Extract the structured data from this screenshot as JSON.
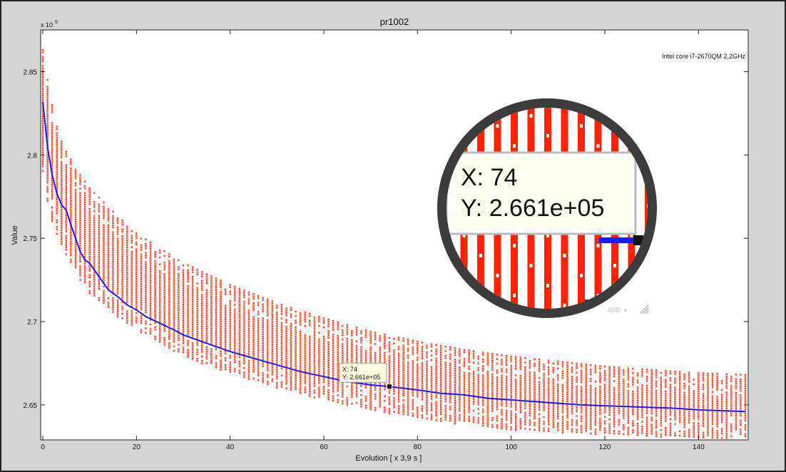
{
  "chart_data": {
    "type": "scatter",
    "title": "pr1002",
    "xlabel": "Evolution",
    "xlabel_unit": "[ x 3,9 s ]",
    "ylabel": "Value",
    "y_exponent_label": "x 10",
    "y_exponent_power": "5",
    "annotation": "Intel core i7-2670QM 2,2GHz",
    "xlim": [
      0,
      150
    ],
    "ylim": [
      262900,
      287500
    ],
    "x_ticks": [
      0,
      20,
      40,
      60,
      80,
      100,
      120,
      140
    ],
    "x_tick_labels": [
      "0",
      "20",
      "40",
      "60",
      "80",
      "100",
      "120",
      "140"
    ],
    "y_ticks": [
      265000,
      270000,
      275000,
      280000,
      285000
    ],
    "y_tick_labels": [
      "2.65",
      "2.7",
      "2.75",
      "2.8",
      "2.85"
    ],
    "grid": false,
    "series_colors": {
      "population": "#ff2200",
      "best": "#1a1aff"
    },
    "best_series": {
      "x": [
        0,
        1,
        2,
        3,
        4,
        5,
        6,
        7,
        8,
        9,
        10,
        12,
        14,
        16,
        18,
        20,
        22,
        25,
        28,
        30,
        33,
        36,
        40,
        45,
        50,
        55,
        60,
        65,
        70,
        74,
        80,
        85,
        90,
        95,
        100,
        105,
        110,
        115,
        120,
        125,
        130,
        135,
        140,
        145,
        150
      ],
      "y": [
        283200,
        280500,
        278800,
        277700,
        277000,
        276700,
        275800,
        275000,
        274200,
        273700,
        273500,
        272700,
        271900,
        271500,
        271000,
        270700,
        270300,
        269900,
        269500,
        269200,
        268900,
        268600,
        268200,
        267800,
        267400,
        267000,
        266700,
        266400,
        266200,
        266100,
        265900,
        265700,
        265600,
        265400,
        265300,
        265200,
        265100,
        265000,
        264950,
        264900,
        264850,
        264800,
        264700,
        264650,
        264600
      ]
    },
    "population_spread": {
      "x": [
        0,
        1,
        2,
        3,
        5,
        8,
        10,
        15,
        20,
        30,
        40,
        50,
        60,
        70,
        80,
        90,
        100,
        110,
        120,
        130,
        140,
        150
      ],
      "upper": [
        286300,
        284500,
        283000,
        281700,
        280200,
        278800,
        278000,
        276600,
        275300,
        273500,
        272200,
        271100,
        270200,
        269400,
        268800,
        268300,
        267900,
        267600,
        267300,
        267100,
        266900,
        266800
      ],
      "lower": [
        279000,
        277200,
        276000,
        275200,
        274000,
        272500,
        271700,
        270500,
        269500,
        267900,
        266900,
        266000,
        265300,
        264700,
        264200,
        263800,
        263500,
        263300,
        263200,
        263100,
        263000,
        263000
      ]
    },
    "datatip": {
      "x": 74,
      "y": 266100,
      "x_text": "X: 74",
      "y_text": "Y: 2.661e+05"
    }
  },
  "magnifier": {
    "x_text": "X: 74",
    "y_text": "Y: 2.661e+05",
    "zoom_label": "400"
  }
}
